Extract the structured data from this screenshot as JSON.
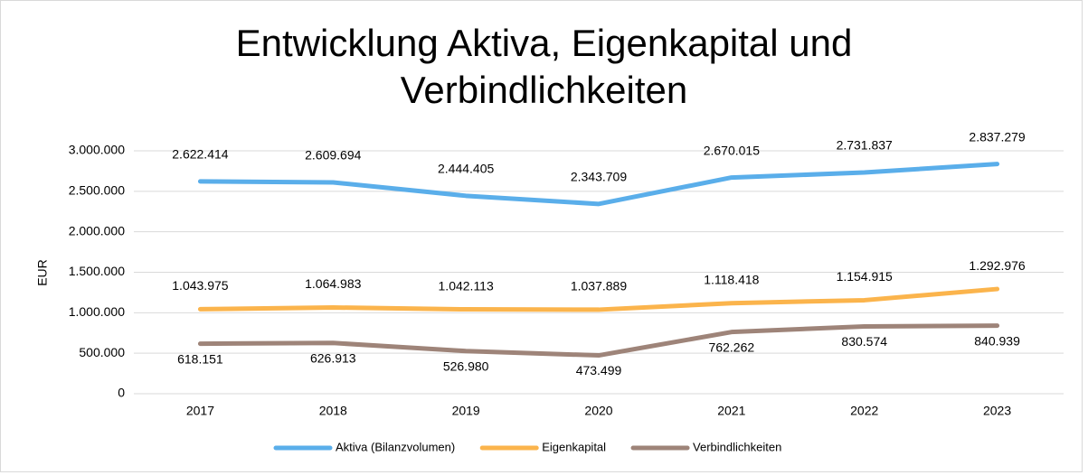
{
  "chart_data": {
    "type": "line",
    "title": "Entwicklung Aktiva, Eigenkapital und Verbindlichkeiten",
    "y_label": "EUR",
    "categories": [
      "2017",
      "2018",
      "2019",
      "2020",
      "2021",
      "2022",
      "2023"
    ],
    "series": [
      {
        "name": "Aktiva (Bilanzvolumen)",
        "color": "#5aaeea",
        "values": [
          2622414,
          2609694,
          2444405,
          2343709,
          2670015,
          2731837,
          2837279
        ],
        "value_labels": [
          "2.622.414",
          "2.609.694",
          "2.444.405",
          "2.343.709",
          "2.670.015",
          "2.731.837",
          "2.837.279"
        ]
      },
      {
        "name": "Eigenkapital",
        "color": "#fbb44c",
        "values": [
          1043975,
          1064983,
          1042113,
          1037889,
          1118418,
          1154915,
          1292976
        ],
        "value_labels": [
          "1.043.975",
          "1.064.983",
          "1.042.113",
          "1.037.889",
          "1.118.418",
          "1.154.915",
          "1.292.976"
        ]
      },
      {
        "name": "Verbindlichkeiten",
        "color": "#9e8479",
        "values": [
          618151,
          626913,
          526980,
          473499,
          762262,
          830574,
          840939
        ],
        "value_labels": [
          "618.151",
          "626.913",
          "526.980",
          "473.499",
          "762.262",
          "830.574",
          "840.939"
        ]
      }
    ],
    "ylim": [
      0,
      3000000
    ],
    "yticks": [
      0,
      {
        "value": 500000,
        "label": "500.000"
      },
      {
        "value": 1000000,
        "label": "1.000.000"
      },
      {
        "value": 1500000,
        "label": "1.500.000"
      },
      {
        "value": 2000000,
        "label": "2.000.000"
      },
      {
        "value": 2500000,
        "label": "2.500.000"
      },
      {
        "value": 3000000,
        "label": "3.000.000"
      }
    ],
    "grid": true,
    "legend": "bottom"
  }
}
